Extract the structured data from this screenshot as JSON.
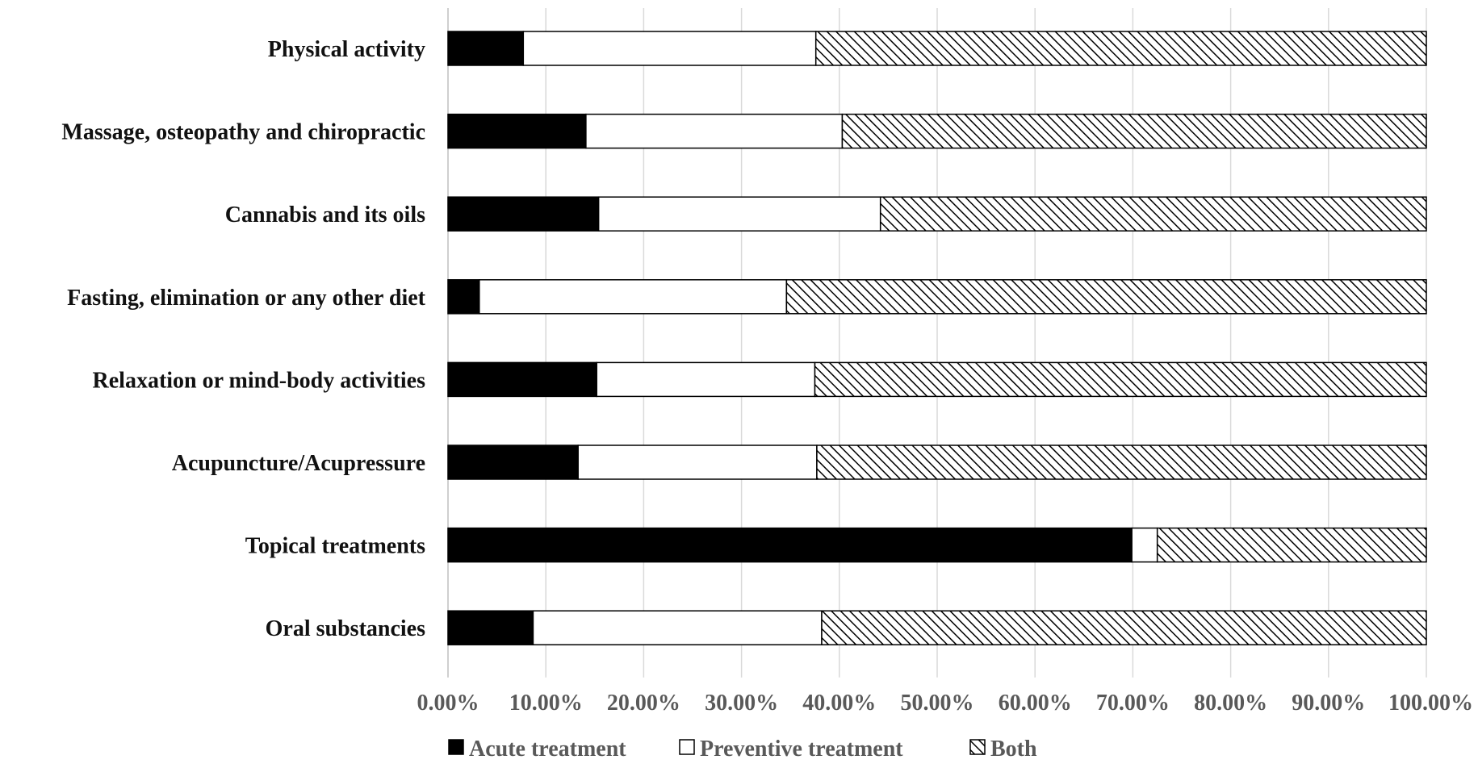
{
  "chart_data": {
    "type": "bar",
    "orientation": "horizontal",
    "stacked": true,
    "percent": true,
    "title": "",
    "xlabel": "",
    "ylabel": "",
    "xlim": [
      0,
      100
    ],
    "grid": true,
    "legend_position": "bottom",
    "categories": [
      "Physical activity",
      "Massage, osteopathy and chiropractic",
      "Cannabis and its oils",
      "Fasting, elimination or any other diet",
      "Relaxation or mind-body activities",
      "Acupuncture/Acupressure",
      "Topical treatments",
      "Oral substancies"
    ],
    "series": [
      {
        "name": "Acute treatment",
        "fill": "solid",
        "color": "#000000",
        "values": [
          7.7,
          14.1,
          15.4,
          3.2,
          15.2,
          13.3,
          69.9,
          8.7
        ]
      },
      {
        "name": "Preventive treatment",
        "fill": "white",
        "color": "#ffffff",
        "values": [
          29.9,
          26.2,
          28.8,
          31.4,
          22.3,
          24.4,
          2.6,
          29.5
        ]
      },
      {
        "name": "Both",
        "fill": "hatch",
        "color": "#000000",
        "values": [
          62.4,
          59.7,
          55.8,
          65.4,
          62.5,
          62.3,
          27.5,
          61.8
        ]
      }
    ],
    "x_ticks": [
      "0.00%",
      "10.00%",
      "20.00%",
      "30.00%",
      "40.00%",
      "50.00%",
      "60.00%",
      "70.00%",
      "80.00%",
      "90.00%",
      "100.00%"
    ]
  }
}
